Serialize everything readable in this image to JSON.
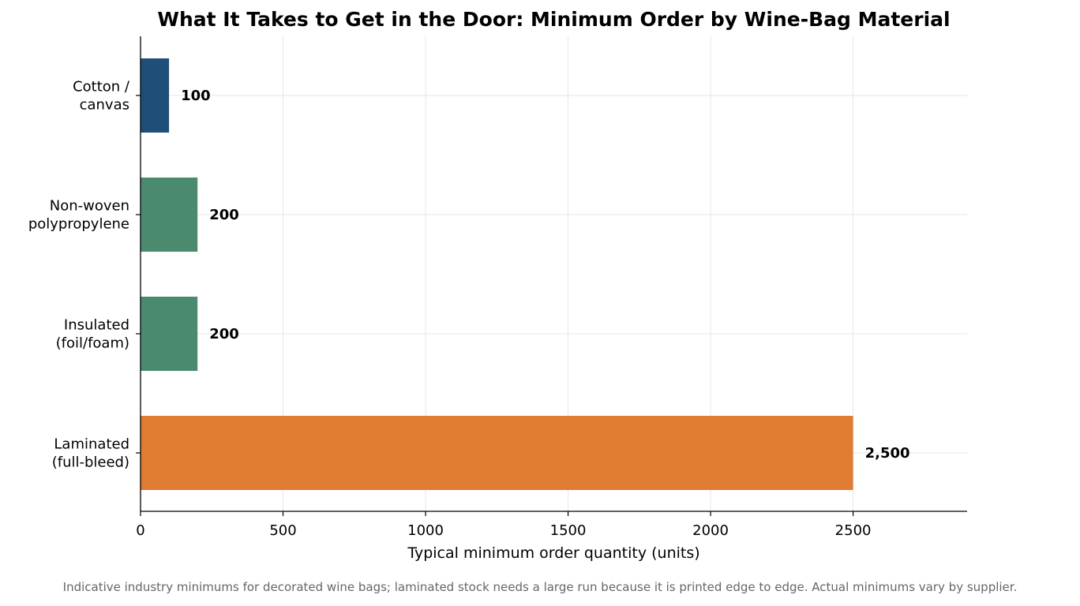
{
  "chart_data": {
    "type": "bar",
    "orientation": "horizontal",
    "title": "What It Takes to Get in the Door: Minimum Order by Wine-Bag Material",
    "xlabel": "Typical minimum order quantity (units)",
    "ylabel": "",
    "xlim": [
      0,
      2900
    ],
    "xticks": [
      0,
      500,
      1000,
      1500,
      2000,
      2500
    ],
    "grid": true,
    "categories": [
      [
        "Cotton /",
        "canvas"
      ],
      [
        "Non-woven",
        "polypropylene"
      ],
      [
        "Insulated",
        "(foil/foam)"
      ],
      [
        "Laminated",
        "(full-bleed)"
      ]
    ],
    "values": [
      100,
      200,
      200,
      2500
    ],
    "value_labels": [
      "100",
      "200",
      "200",
      "2,500"
    ],
    "colors": [
      "#1f4e79",
      "#4a8b6f",
      "#4a8b6f",
      "#e07b33"
    ],
    "footnote": "Indicative industry minimums for decorated wine bags; laminated stock needs a large run because it is printed edge to edge. Actual minimums vary by supplier."
  }
}
